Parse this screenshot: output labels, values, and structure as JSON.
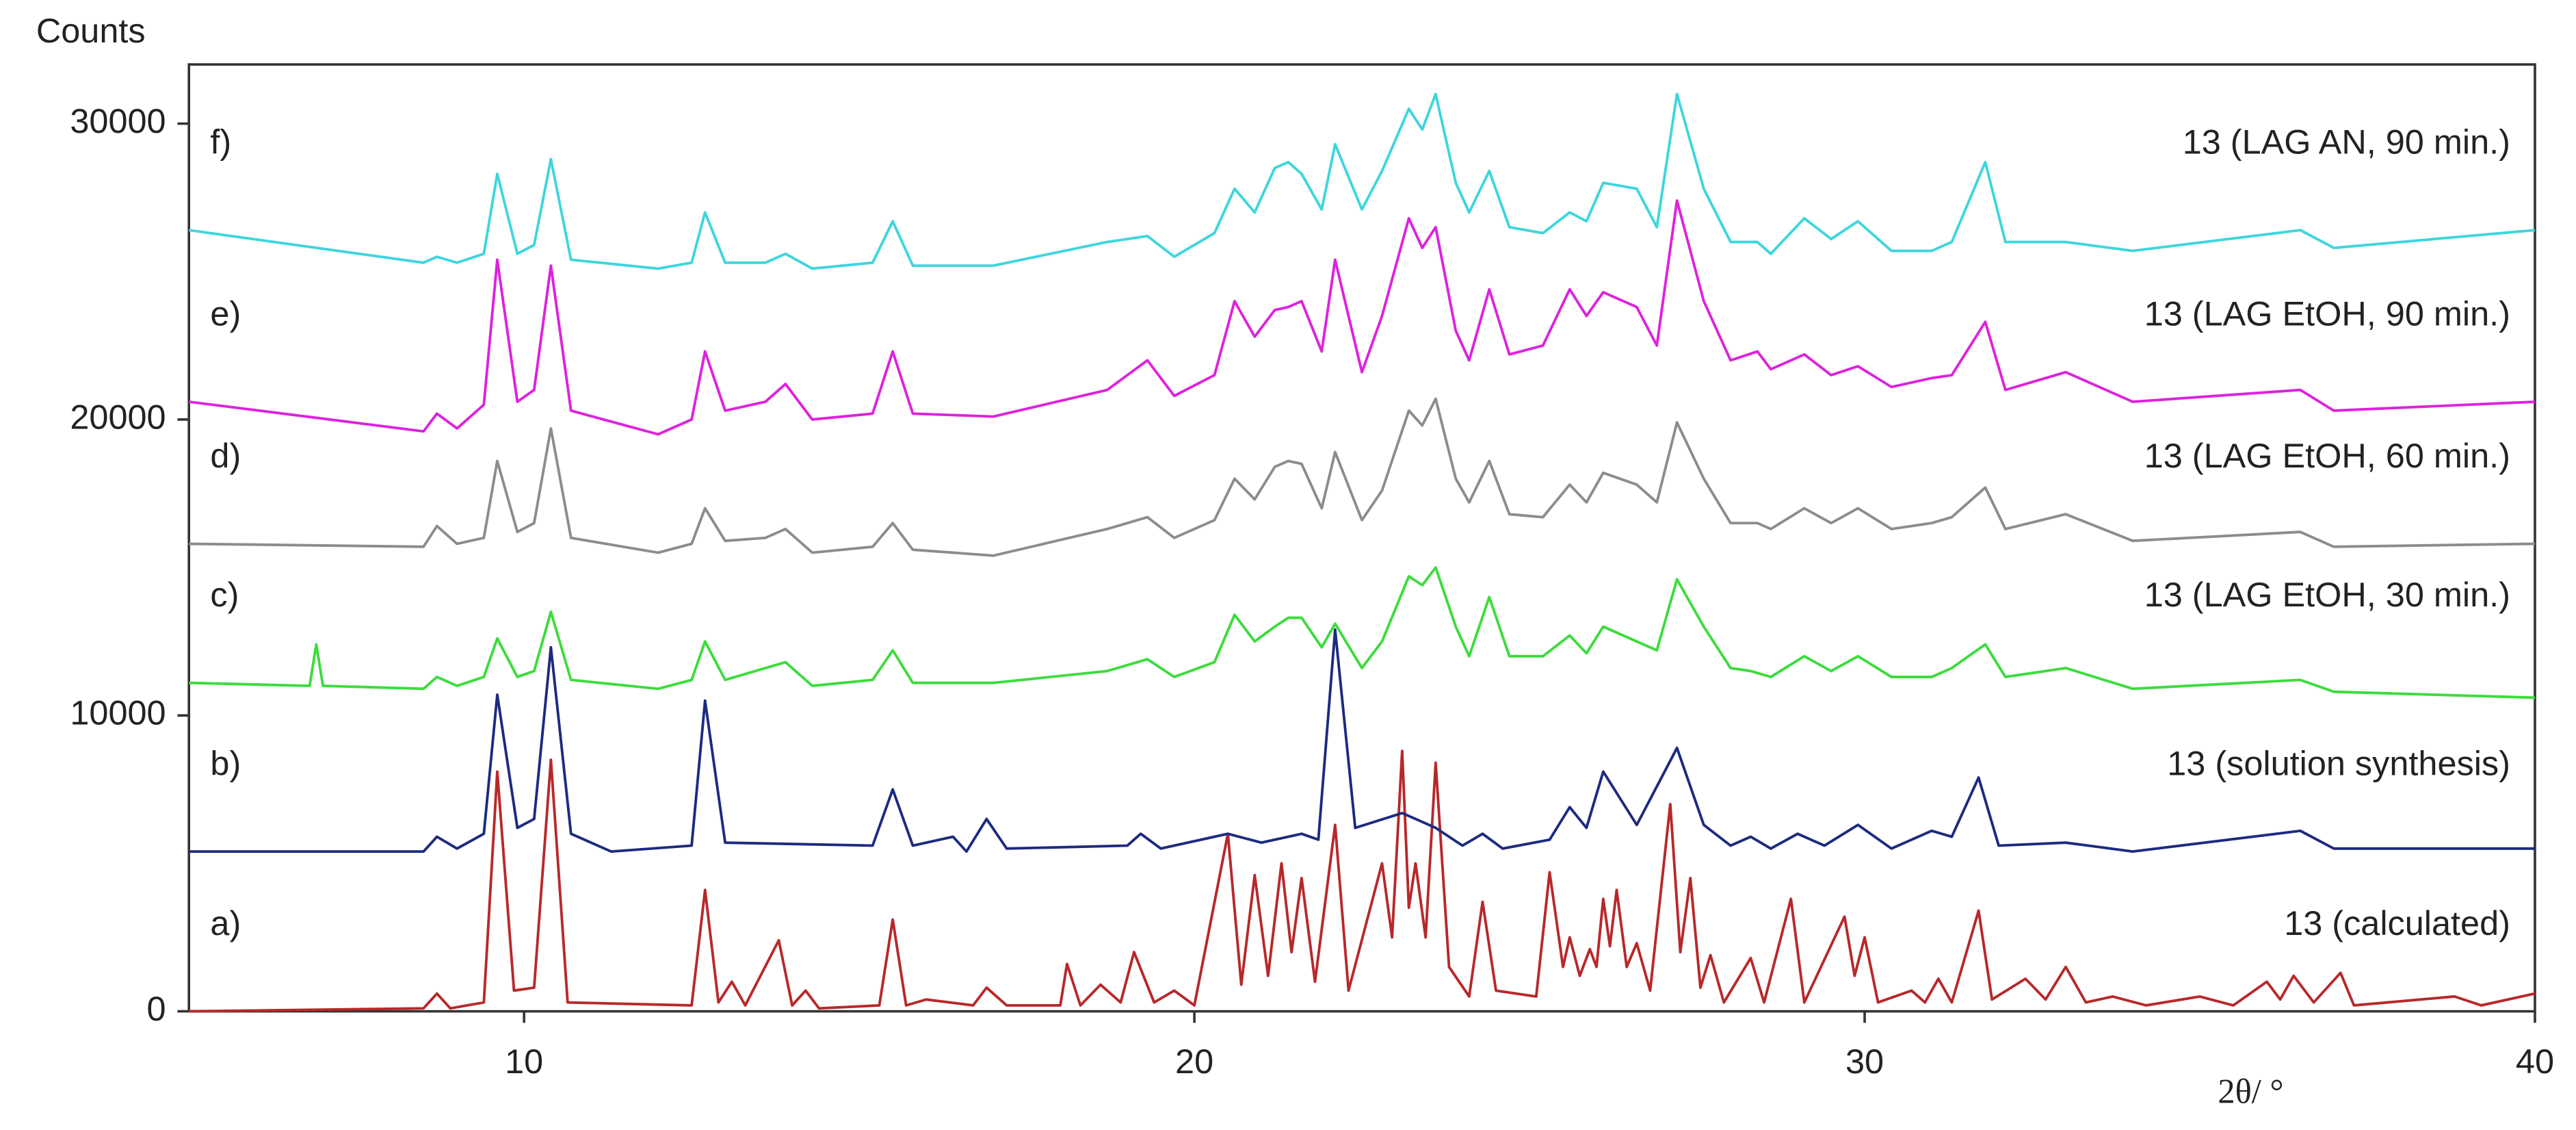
{
  "chart_data": {
    "type": "line",
    "ylabel": "Counts",
    "xlabel": "2θ/ °",
    "xlim": [
      5,
      40
    ],
    "xticks": [
      10,
      20,
      30,
      40
    ],
    "ylim": [
      0,
      32000
    ],
    "yticks": [
      0,
      10000,
      20000,
      30000
    ],
    "series": [
      {
        "label": "a)",
        "name": "13 (calculated)",
        "color": "#b8282a",
        "x": [
          5,
          8.5,
          8.7,
          8.9,
          9.4,
          9.6,
          9.85,
          10.15,
          10.4,
          10.65,
          12.5,
          12.7,
          12.9,
          13.1,
          13.3,
          13.8,
          14.0,
          14.2,
          14.4,
          15.3,
          15.5,
          15.7,
          16.0,
          16.7,
          16.9,
          17.2,
          18.0,
          18.1,
          18.3,
          18.6,
          18.9,
          19.1,
          19.4,
          19.7,
          20.0,
          20.5,
          20.7,
          20.9,
          21.1,
          21.3,
          21.45,
          21.6,
          21.8,
          22.1,
          22.3,
          22.8,
          22.95,
          23.1,
          23.2,
          23.3,
          23.45,
          23.6,
          23.8,
          24.1,
          24.3,
          24.5,
          25.1,
          25.3,
          25.5,
          25.6,
          25.75,
          25.9,
          26.0,
          26.1,
          26.2,
          26.3,
          26.45,
          26.6,
          26.8,
          27.1,
          27.25,
          27.4,
          27.55,
          27.7,
          27.9,
          28.3,
          28.5,
          28.9,
          29.1,
          29.7,
          29.85,
          30.0,
          30.2,
          30.7,
          30.9,
          31.1,
          31.3,
          31.7,
          31.9,
          32.4,
          32.7,
          33.0,
          33.3,
          33.7,
          34.2,
          35.0,
          35.5,
          36.0,
          36.2,
          36.4,
          36.7,
          37.1,
          37.3,
          38.8,
          39.2,
          40
        ],
        "values": [
          0,
          100,
          600,
          100,
          300,
          8100,
          700,
          800,
          8500,
          300,
          200,
          4100,
          300,
          1000,
          200,
          2400,
          200,
          700,
          100,
          200,
          3100,
          200,
          400,
          200,
          800,
          200,
          200,
          1600,
          200,
          900,
          300,
          2000,
          300,
          700,
          200,
          6000,
          900,
          4600,
          1200,
          5000,
          2000,
          4500,
          1000,
          6300,
          700,
          5000,
          2500,
          8800,
          3500,
          5000,
          2500,
          8400,
          1500,
          500,
          3700,
          700,
          500,
          4700,
          1500,
          2500,
          1200,
          2100,
          1500,
          3800,
          2200,
          4100,
          1500,
          2300,
          700,
          7000,
          2000,
          4500,
          800,
          1900,
          300,
          1800,
          300,
          3800,
          300,
          3200,
          1200,
          2500,
          300,
          700,
          300,
          1100,
          300,
          3400,
          400,
          1100,
          400,
          1500,
          300,
          500,
          200,
          500,
          200,
          1000,
          400,
          1200,
          300,
          1300,
          200,
          500,
          200,
          600
        ]
      },
      {
        "label": "b)",
        "name": "13 (solution synthesis)",
        "color": "#1c2a80",
        "x": [
          5,
          8.5,
          8.7,
          9.0,
          9.4,
          9.6,
          9.9,
          10.15,
          10.4,
          10.7,
          11.3,
          12.5,
          12.7,
          13.0,
          15.2,
          15.5,
          15.8,
          16.4,
          16.6,
          16.9,
          17.2,
          19.0,
          19.2,
          19.5,
          20.5,
          21.0,
          21.6,
          21.85,
          22.1,
          22.4,
          23.1,
          23.6,
          24.0,
          24.3,
          24.6,
          25.3,
          25.6,
          25.85,
          26.1,
          26.6,
          27.2,
          27.6,
          28.0,
          28.3,
          28.6,
          29.0,
          29.4,
          29.9,
          30.4,
          31.0,
          31.3,
          31.7,
          32.0,
          33.0,
          34.0,
          36.5,
          37.0,
          40
        ],
        "values": [
          5400,
          5400,
          5900,
          5500,
          6000,
          10700,
          6200,
          6500,
          12300,
          6000,
          5400,
          5600,
          10500,
          5700,
          5600,
          7500,
          5600,
          5900,
          5400,
          6500,
          5500,
          5600,
          6000,
          5500,
          6000,
          5700,
          6000,
          5800,
          12900,
          6200,
          6700,
          6200,
          5600,
          6000,
          5500,
          5800,
          6900,
          6200,
          8100,
          6300,
          8900,
          6300,
          5600,
          5900,
          5500,
          6000,
          5600,
          6300,
          5500,
          6100,
          5900,
          7900,
          5600,
          5700,
          5400,
          6100,
          5500,
          5500
        ]
      },
      {
        "label": "c)",
        "name": "13 (LAG EtOH, 30 min.)",
        "color": "#3cdc3c",
        "x": [
          5,
          6.8,
          6.9,
          7.0,
          8.5,
          8.7,
          9.0,
          9.4,
          9.6,
          9.9,
          10.15,
          10.4,
          10.7,
          12.0,
          12.5,
          12.7,
          13.0,
          13.9,
          14.3,
          15.2,
          15.5,
          15.8,
          17.0,
          18.7,
          19.3,
          19.7,
          20.3,
          20.6,
          20.9,
          21.2,
          21.4,
          21.6,
          21.9,
          22.1,
          22.5,
          22.8,
          23.2,
          23.4,
          23.6,
          23.9,
          24.1,
          24.4,
          24.7,
          25.2,
          25.6,
          25.85,
          26.1,
          26.6,
          26.9,
          27.2,
          27.6,
          28.0,
          28.3,
          28.6,
          29.1,
          29.5,
          29.9,
          30.4,
          31.0,
          31.3,
          31.8,
          32.1,
          33.0,
          34.0,
          36.5,
          37.0,
          40
        ],
        "values": [
          11100,
          11000,
          12400,
          11000,
          10900,
          11300,
          11000,
          11300,
          12600,
          11300,
          11500,
          13500,
          11200,
          10900,
          11200,
          12500,
          11200,
          11800,
          11000,
          11200,
          12200,
          11100,
          11100,
          11500,
          11900,
          11300,
          11800,
          13400,
          12500,
          13000,
          13300,
          13300,
          12300,
          13100,
          11600,
          12500,
          14700,
          14400,
          15000,
          13000,
          12000,
          14000,
          12000,
          12000,
          12700,
          12100,
          13000,
          12500,
          12200,
          14600,
          13000,
          11600,
          11500,
          11300,
          12000,
          11500,
          12000,
          11300,
          11300,
          11600,
          12400,
          11300,
          11600,
          10900,
          11200,
          10800,
          10600
        ]
      },
      {
        "label": "d)",
        "name": "13 (LAG EtOH, 60 min.)",
        "color": "#8c8c8c",
        "x": [
          5,
          8.5,
          8.7,
          9.0,
          9.4,
          9.6,
          9.9,
          10.15,
          10.4,
          10.7,
          12.0,
          12.5,
          12.7,
          13.0,
          13.6,
          13.9,
          14.3,
          15.2,
          15.5,
          15.8,
          17.0,
          18.7,
          19.3,
          19.7,
          20.3,
          20.6,
          20.9,
          21.2,
          21.4,
          21.6,
          21.9,
          22.1,
          22.5,
          22.8,
          23.2,
          23.4,
          23.6,
          23.9,
          24.1,
          24.4,
          24.7,
          25.2,
          25.6,
          25.85,
          26.1,
          26.6,
          26.9,
          27.2,
          27.6,
          28.0,
          28.4,
          28.6,
          29.1,
          29.5,
          29.9,
          30.4,
          31.0,
          31.3,
          31.8,
          32.1,
          33.0,
          34.0,
          36.5,
          37.0,
          40
        ],
        "values": [
          15800,
          15700,
          16400,
          15800,
          16000,
          18600,
          16200,
          16500,
          19700,
          16000,
          15500,
          15800,
          17000,
          15900,
          16000,
          16300,
          15500,
          15700,
          16500,
          15600,
          15400,
          16300,
          16700,
          16000,
          16600,
          18000,
          17300,
          18400,
          18600,
          18500,
          17000,
          18900,
          16600,
          17600,
          20300,
          19800,
          20700,
          18000,
          17200,
          18600,
          16800,
          16700,
          17800,
          17200,
          18200,
          17800,
          17200,
          19900,
          18000,
          16500,
          16500,
          16300,
          17000,
          16500,
          17000,
          16300,
          16500,
          16700,
          17700,
          16300,
          16800,
          15900,
          16200,
          15700,
          15800
        ]
      },
      {
        "label": "e)",
        "name": "13 (LAG EtOH, 90 min.)",
        "color": "#dd22dd",
        "x": [
          5,
          8.5,
          8.7,
          9.0,
          9.4,
          9.6,
          9.9,
          10.15,
          10.4,
          10.7,
          12.0,
          12.5,
          12.7,
          13.0,
          13.6,
          13.9,
          14.3,
          15.2,
          15.5,
          15.8,
          17.0,
          18.7,
          19.3,
          19.7,
          20.3,
          20.6,
          20.9,
          21.2,
          21.4,
          21.6,
          21.9,
          22.1,
          22.5,
          22.8,
          23.2,
          23.4,
          23.6,
          23.9,
          24.1,
          24.4,
          24.7,
          25.2,
          25.6,
          25.85,
          26.1,
          26.6,
          26.9,
          27.2,
          27.6,
          28.0,
          28.4,
          28.6,
          29.1,
          29.5,
          29.9,
          30.4,
          31.0,
          31.3,
          31.8,
          32.1,
          33.0,
          34.0,
          36.5,
          37.0,
          40
        ],
        "values": [
          20600,
          19600,
          20200,
          19700,
          20500,
          25400,
          20600,
          21000,
          25200,
          20300,
          19500,
          20000,
          22300,
          20300,
          20600,
          21200,
          20000,
          20200,
          22300,
          20200,
          20100,
          21000,
          22000,
          20800,
          21500,
          24000,
          22800,
          23700,
          23800,
          24000,
          22300,
          25400,
          21600,
          23500,
          26800,
          25800,
          26500,
          23000,
          22000,
          24400,
          22200,
          22500,
          24400,
          23500,
          24300,
          23800,
          22500,
          27400,
          24000,
          22000,
          22300,
          21700,
          22200,
          21500,
          21800,
          21100,
          21400,
          21500,
          23300,
          21000,
          21600,
          20600,
          21000,
          20300,
          20600
        ]
      },
      {
        "label": "f)",
        "name": "13 (LAG AN, 90 min.)",
        "color": "#3dd6dc",
        "x": [
          5,
          8.5,
          8.7,
          9.0,
          9.4,
          9.6,
          9.9,
          10.15,
          10.4,
          10.7,
          12.0,
          12.5,
          12.7,
          13.0,
          13.6,
          13.9,
          14.3,
          15.2,
          15.5,
          15.8,
          17.0,
          18.7,
          19.3,
          19.7,
          20.3,
          20.6,
          20.9,
          21.2,
          21.4,
          21.6,
          21.9,
          22.1,
          22.5,
          22.8,
          23.2,
          23.4,
          23.6,
          23.9,
          24.1,
          24.4,
          24.7,
          25.2,
          25.6,
          25.85,
          26.1,
          26.6,
          26.9,
          27.2,
          27.6,
          28.0,
          28.4,
          28.6,
          29.1,
          29.5,
          29.9,
          30.4,
          31.0,
          31.3,
          31.8,
          32.1,
          33.0,
          34.0,
          36.5,
          37.0,
          40
        ],
        "values": [
          26400,
          25300,
          25500,
          25300,
          25600,
          28300,
          25600,
          25900,
          28800,
          25400,
          25100,
          25300,
          27000,
          25300,
          25300,
          25600,
          25100,
          25300,
          26700,
          25200,
          25200,
          26000,
          26200,
          25500,
          26300,
          27800,
          27000,
          28500,
          28700,
          28300,
          27100,
          29300,
          27100,
          28400,
          30500,
          29800,
          31000,
          28000,
          27000,
          28400,
          26500,
          26300,
          27000,
          26700,
          28000,
          27800,
          26500,
          31000,
          27800,
          26000,
          26000,
          25600,
          26800,
          26100,
          26700,
          25700,
          25700,
          26000,
          28700,
          26000,
          26000,
          25700,
          26400,
          25800,
          26400
        ]
      }
    ]
  }
}
